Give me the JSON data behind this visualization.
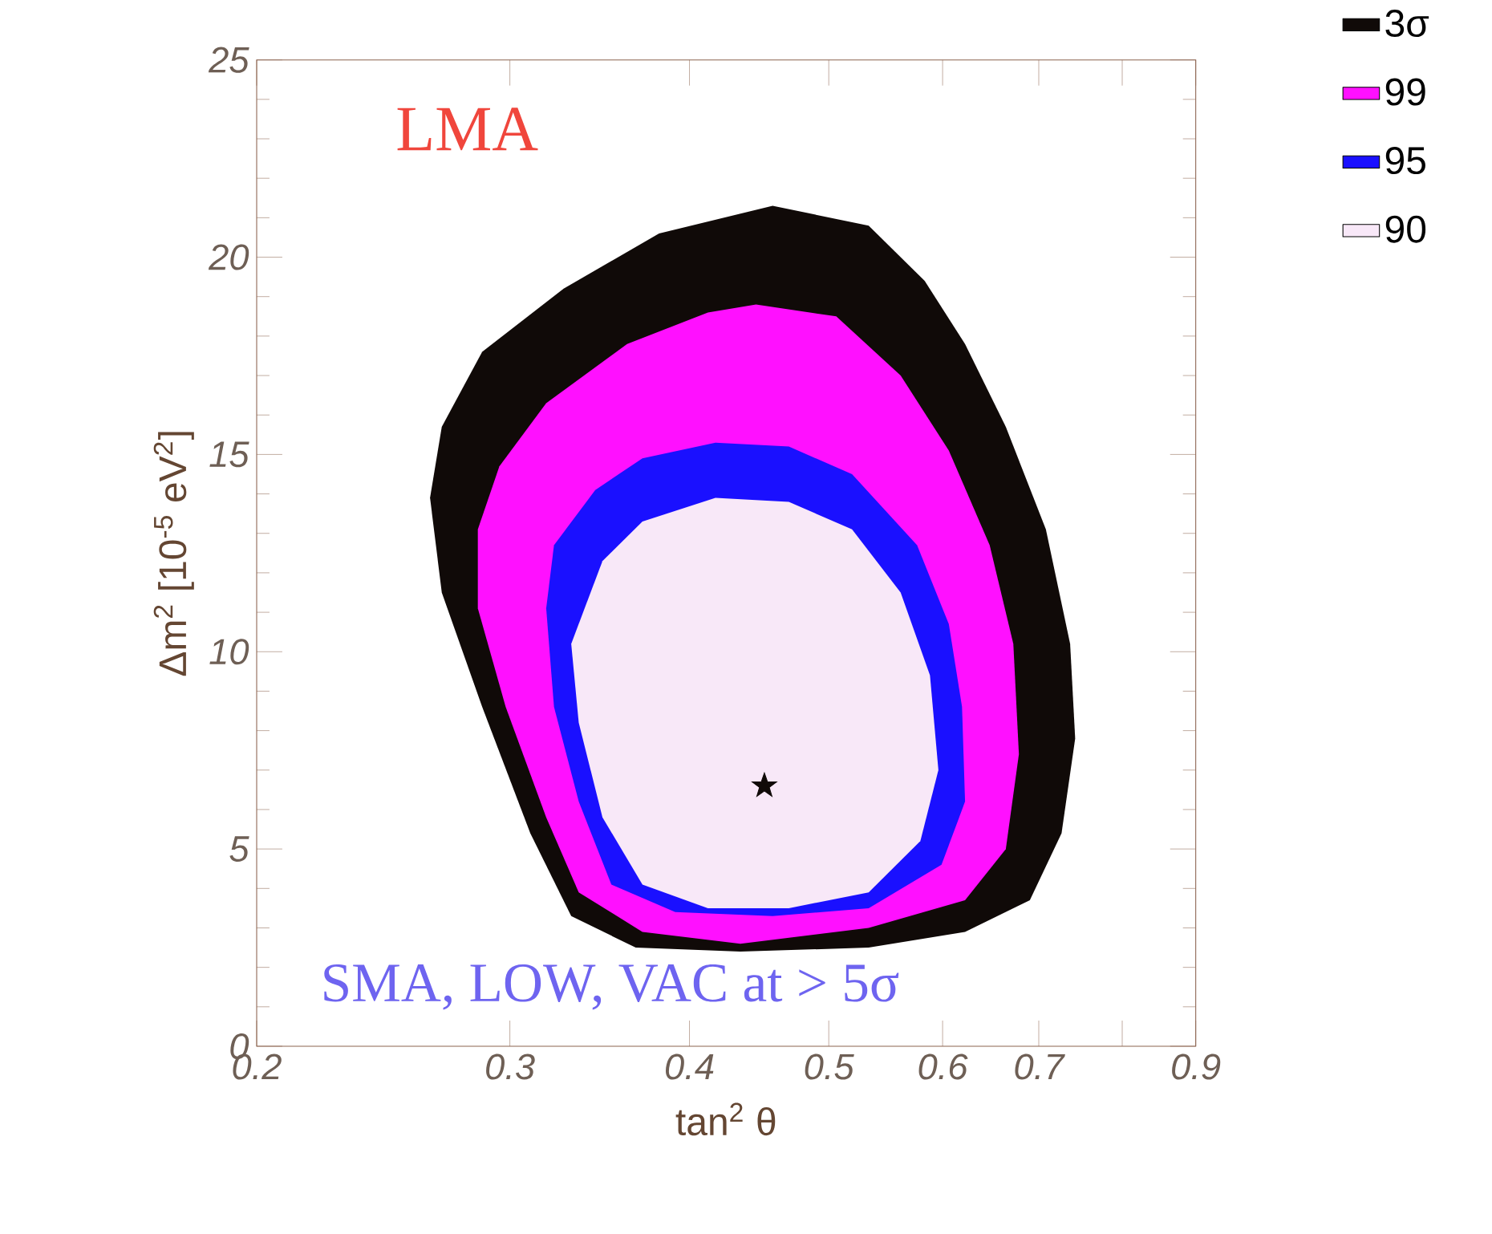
{
  "chart_data": {
    "type": "area",
    "xlabel": "tan$^{2}$ θ",
    "ylabel": "Δm$^{2}$ [10$^{-5}$ eV$^{2}$]",
    "annotations": [
      "LMA",
      "SMA, LOW, VAC at > 5σ"
    ],
    "log": "x",
    "xlim": [
      0.2,
      0.9
    ],
    "ylim": [
      0,
      25
    ],
    "xticks": [
      0.2,
      0.3,
      0.4,
      0.5,
      0.6,
      0.7,
      {
        "value": 0.8,
        "label": null
      },
      0.9
    ],
    "yticks": [
      0,
      5,
      10,
      15,
      20,
      25
    ],
    "grid": false,
    "legend": "right",
    "series": [
      {
        "name": "3σ",
        "color": "#100a08",
        "x": [
          0.457,
          0.533,
          0.583,
          0.622,
          0.664,
          0.708,
          0.736,
          0.742,
          0.726,
          0.69,
          0.622,
          0.533,
          0.434,
          0.367,
          0.331,
          0.31,
          0.287,
          0.269,
          0.264,
          0.269,
          0.287,
          0.327,
          0.381
        ],
        "values": [
          21.3,
          20.8,
          19.4,
          17.8,
          15.7,
          13.1,
          10.2,
          7.8,
          5.4,
          3.7,
          2.9,
          2.5,
          2.4,
          2.5,
          3.3,
          5.4,
          8.6,
          11.5,
          13.9,
          15.7,
          17.6,
          19.2,
          20.6
        ]
      },
      {
        "name": "99",
        "color": "#ff10ff",
        "x": [
          0.445,
          0.506,
          0.561,
          0.606,
          0.647,
          0.672,
          0.678,
          0.664,
          0.622,
          0.533,
          0.434,
          0.371,
          0.335,
          0.318,
          0.298,
          0.285,
          0.285,
          0.295,
          0.318,
          0.362,
          0.412
        ],
        "values": [
          18.8,
          18.5,
          17.0,
          15.1,
          12.7,
          10.2,
          7.4,
          5.0,
          3.7,
          3.0,
          2.6,
          2.9,
          3.9,
          5.8,
          8.6,
          11.1,
          13.1,
          14.7,
          16.3,
          17.8,
          18.6
        ]
      },
      {
        "name": "95",
        "color": "#1a10ff",
        "x": [
          0.417,
          0.371,
          0.344,
          0.322,
          0.318,
          0.322,
          0.335,
          0.353,
          0.391,
          0.457,
          0.533,
          0.599,
          0.622,
          0.619,
          0.606,
          0.576,
          0.519,
          0.469
        ],
        "values": [
          15.3,
          14.9,
          14.1,
          12.7,
          11.1,
          8.6,
          6.2,
          4.1,
          3.4,
          3.3,
          3.5,
          4.6,
          6.2,
          8.6,
          10.7,
          12.7,
          14.5,
          15.2
        ]
      },
      {
        "name": "90",
        "color": "#f8e8f8",
        "x": [
          0.417,
          0.371,
          0.348,
          0.331,
          0.335,
          0.348,
          0.371,
          0.412,
          0.469,
          0.533,
          0.579,
          0.596,
          0.588,
          0.561,
          0.519,
          0.469
        ],
        "values": [
          13.9,
          13.3,
          12.3,
          10.2,
          8.2,
          5.8,
          4.1,
          3.5,
          3.5,
          3.9,
          5.2,
          7.0,
          9.4,
          11.5,
          13.1,
          13.8
        ]
      },
      {
        "type": "scatter",
        "marker": "star",
        "color": "#100a08",
        "x": [
          0.451
        ],
        "values": [
          6.6
        ]
      }
    ]
  }
}
